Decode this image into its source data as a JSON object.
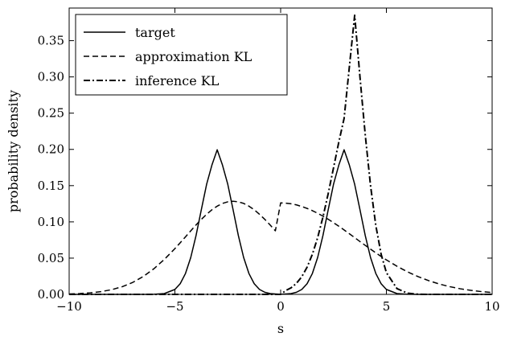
{
  "chart_data": {
    "type": "line",
    "xlabel": "s",
    "ylabel": "probability density",
    "xlim": [
      -10,
      10
    ],
    "ylim": [
      0,
      0.395
    ],
    "x_ticks": [
      -10,
      -5,
      0,
      5,
      10
    ],
    "x_tick_labels": [
      "−10",
      "−5",
      "0",
      "5",
      "10"
    ],
    "y_ticks": [
      0.0,
      0.05,
      0.1,
      0.15,
      0.2,
      0.25,
      0.3,
      0.35
    ],
    "y_tick_labels": [
      "0.00",
      "0.05",
      "0.10",
      "0.15",
      "0.20",
      "0.25",
      "0.30",
      "0.35"
    ],
    "grid": false,
    "legend_position": "top-left",
    "x": [
      -10,
      -9.5,
      -9,
      -8.5,
      -8,
      -7.5,
      -7,
      -6.5,
      -6,
      -5.5,
      -5,
      -4.75,
      -4.5,
      -4.25,
      -4,
      -3.75,
      -3.5,
      -3.25,
      -3,
      -2.75,
      -2.5,
      -2.25,
      -2,
      -1.75,
      -1.5,
      -1.25,
      -1,
      -0.75,
      -0.5,
      -0.25,
      0,
      0.25,
      0.5,
      0.75,
      1,
      1.25,
      1.5,
      1.75,
      2,
      2.25,
      2.5,
      2.75,
      3,
      3.25,
      3.5,
      3.75,
      4,
      4.25,
      4.5,
      4.75,
      5,
      5.5,
      6,
      6.5,
      7,
      7.5,
      8,
      8.5,
      9,
      9.5,
      10
    ],
    "series": [
      {
        "name": "target",
        "style": "solid",
        "values": [
          0.0,
          0.0,
          0.0,
          0.0,
          0.0,
          0.0,
          0.0,
          0.0,
          0.0001,
          0.0011,
          0.0068,
          0.0147,
          0.0288,
          0.0509,
          0.0812,
          0.1169,
          0.1519,
          0.1783,
          0.1995,
          0.1783,
          0.1519,
          0.1169,
          0.0812,
          0.0509,
          0.0288,
          0.0147,
          0.0068,
          0.0029,
          0.0011,
          0.0006,
          0.0002,
          0.0006,
          0.0011,
          0.0029,
          0.0068,
          0.0147,
          0.0288,
          0.0509,
          0.0812,
          0.1169,
          0.1519,
          0.1783,
          0.1995,
          0.1783,
          0.1519,
          0.1169,
          0.0812,
          0.0509,
          0.0288,
          0.0147,
          0.0068,
          0.0011,
          0.0001,
          0.0,
          0.0,
          0.0,
          0.0,
          0.0,
          0.0,
          0.0,
          0.0
        ]
      },
      {
        "name": "approximation KL",
        "style": "dashed",
        "values": [
          0.0006,
          0.0011,
          0.0021,
          0.0038,
          0.0064,
          0.0105,
          0.0164,
          0.0246,
          0.0352,
          0.0482,
          0.0631,
          0.0712,
          0.0794,
          0.0877,
          0.0958,
          0.1035,
          0.1105,
          0.1167,
          0.1217,
          0.1255,
          0.1277,
          0.1285,
          0.1277,
          0.1255,
          0.1217,
          0.1167,
          0.1105,
          0.1035,
          0.0958,
          0.0877,
          0.1262,
          0.1258,
          0.1249,
          0.1234,
          0.1212,
          0.1186,
          0.1155,
          0.1119,
          0.1079,
          0.1036,
          0.0989,
          0.094,
          0.0889,
          0.0836,
          0.0783,
          0.0729,
          0.0676,
          0.0624,
          0.0573,
          0.0523,
          0.0476,
          0.0388,
          0.0311,
          0.0245,
          0.0189,
          0.0143,
          0.0106,
          0.0077,
          0.0055,
          0.0038,
          0.0026
        ]
      },
      {
        "name": "inference KL",
        "style": "dashdot",
        "values": [
          0.0,
          0.0,
          0.0,
          0.0,
          0.0,
          0.0,
          0.0,
          0.0,
          0.0,
          0.0,
          0.0,
          0.0,
          0.0,
          0.0,
          0.0,
          0.0,
          0.0,
          0.0,
          0.0,
          0.0,
          0.0,
          0.0,
          0.0,
          0.0,
          0.0,
          0.0,
          0.0,
          0.0,
          0.0,
          0.0,
          0.0,
          0.0054,
          0.0092,
          0.0153,
          0.0244,
          0.0375,
          0.0553,
          0.0783,
          0.1066,
          0.1392,
          0.1745,
          0.2101,
          0.2427,
          0.314,
          0.385,
          0.3,
          0.22,
          0.15,
          0.095,
          0.0555,
          0.03,
          0.008,
          0.0016,
          0.0002,
          0.0,
          0.0,
          0.0,
          0.0,
          0.0,
          0.0,
          0.0
        ]
      }
    ]
  }
}
